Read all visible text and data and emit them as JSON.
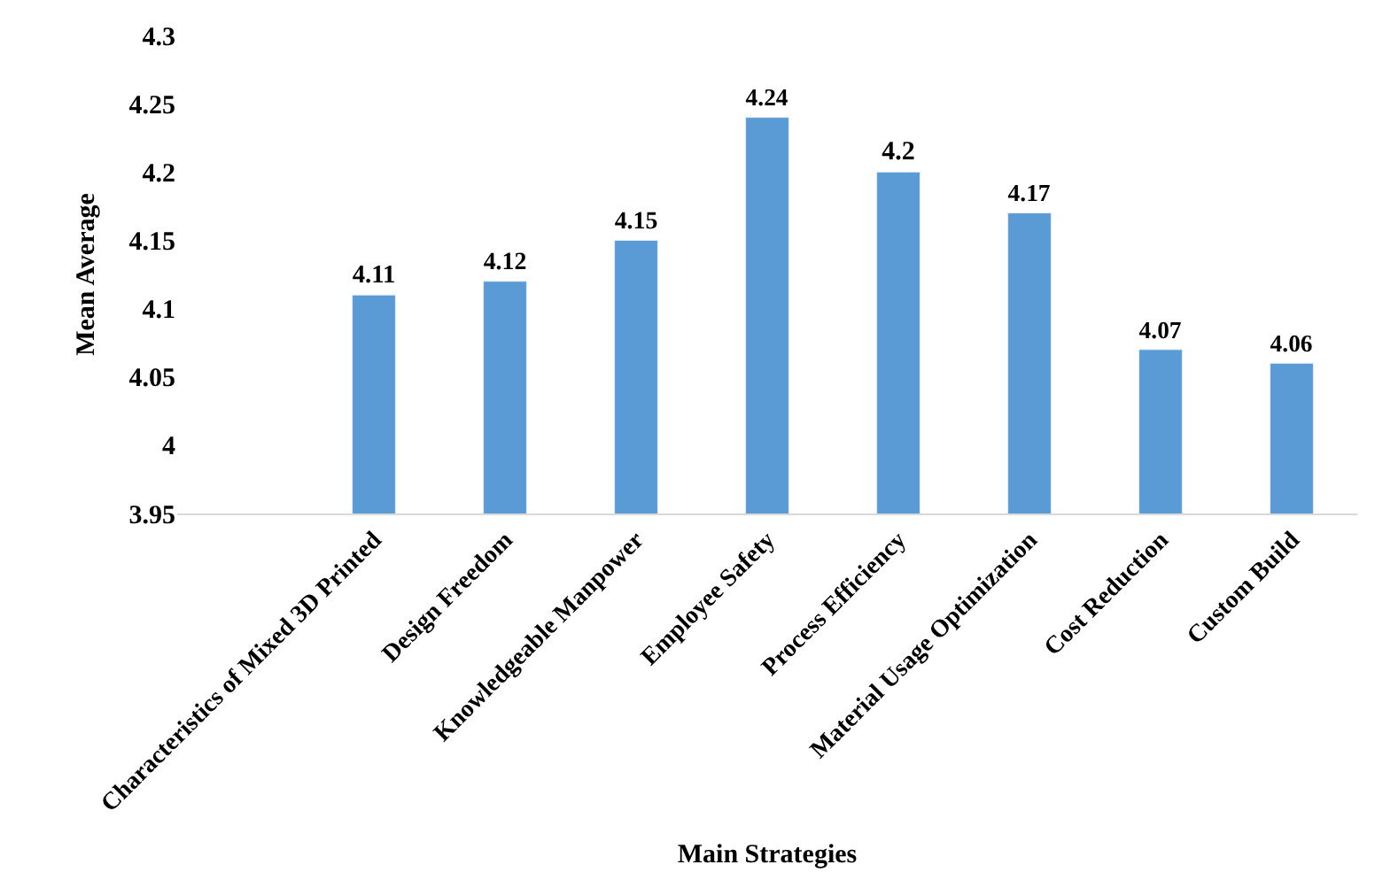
{
  "chart_data": {
    "type": "bar",
    "xlabel": "Main Strategies",
    "ylabel": "Mean Average",
    "categories": [
      "Characteristics of Mixed 3D Printed",
      "Design Freedom",
      "Knowledgeable Manpower",
      "Employee Safety",
      "Process Efficiency",
      "Material Usage Optimization",
      "Cost Reduction",
      "Custom Build"
    ],
    "values": [
      4.11,
      4.12,
      4.15,
      4.24,
      4.2,
      4.17,
      4.07,
      4.06
    ],
    "color": "#5b9bd5",
    "ylim": [
      3.95,
      4.3
    ],
    "yticks": [
      3.95,
      4,
      4.05,
      4.1,
      4.15,
      4.2,
      4.25,
      4.3
    ],
    "data_labels": true,
    "grid": false,
    "legend": false
  }
}
